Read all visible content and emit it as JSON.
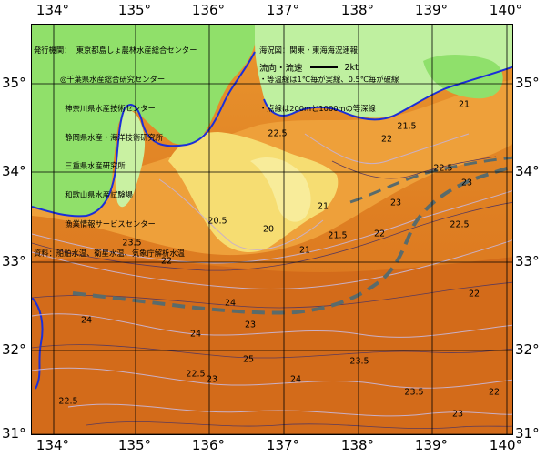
{
  "axes": {
    "lon_labels": [
      "134°",
      "135°",
      "136°",
      "137°",
      "138°",
      "139°",
      "140°"
    ],
    "lat_labels": [
      "35°",
      "34°",
      "33°",
      "32°",
      "31°"
    ]
  },
  "credits": {
    "lines": [
      "発行機関：  東京都島しょ農林水産総合センター",
      "           ◎千葉県水産総合研究センター",
      "             神奈川県水産技術センター",
      "             静岡県水産・海洋技術研究所",
      "             三重県水産研究所",
      "             和歌山県水産試験場",
      "             漁業情報サービスセンター",
      "資料：船舶水温、衛星水温、気象庁解析水温"
    ]
  },
  "legend": {
    "lines": [
      "海況図：関東・東海海況速報",
      "・等温線は1℃毎が実線、0.5℃毎が破線",
      "・点線は200mと1000mの等深線"
    ],
    "flow_label": "流向・流速",
    "flow_scale": "2kt"
  },
  "isotherm_labels": [
    "22.5",
    "23",
    "22",
    "21.5",
    "21",
    "20.5",
    "20",
    "22",
    "23",
    "23.5",
    "24",
    "24",
    "25",
    "24",
    "23.5",
    "23",
    "22.5",
    "22",
    "21",
    "21",
    "21.5",
    "22",
    "22.5",
    "22.5",
    "23",
    "24",
    "23.5",
    "23",
    "22.5",
    "22"
  ],
  "colors": {
    "sea_warm": "#d9731f",
    "sea_mid": "#e8962e",
    "sea_cool": "#f2b24a",
    "sea_yellow": "#f7e37a",
    "land_green": "#8fe06b",
    "land_pale": "#c8f0a0",
    "kuroshio_axis": "#5a6b6b",
    "coast_blue": "#1b2fd9",
    "isoline_light": "#c9b0c8"
  }
}
